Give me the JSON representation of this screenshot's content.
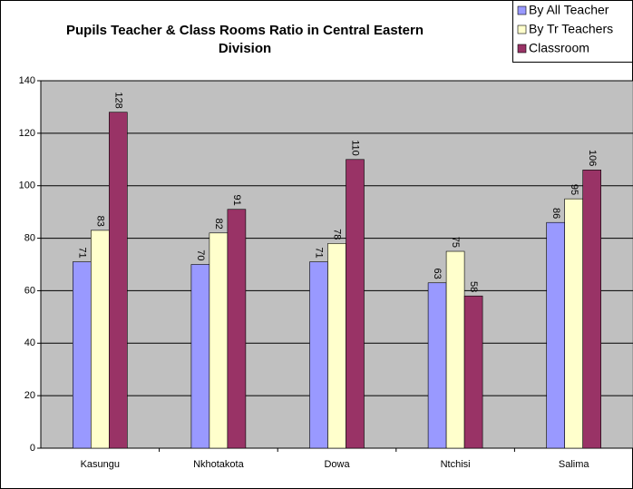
{
  "chart_data": {
    "type": "bar",
    "title": [
      "Pupils Teacher & Class Rooms Ratio in  Central Eastern",
      "Division"
    ],
    "categories": [
      "Kasungu",
      "Nkhotakota",
      "Dowa",
      "Ntchisi",
      "Salima"
    ],
    "series": [
      {
        "name": "By All Teacher",
        "color": "#9999ff",
        "values": [
          71,
          70,
          71,
          63,
          86
        ]
      },
      {
        "name": "By Tr Teachers",
        "color": "#ffffcc",
        "values": [
          83,
          82,
          78,
          75,
          95
        ]
      },
      {
        "name": "Classroom",
        "color": "#993366",
        "values": [
          128,
          91,
          110,
          58,
          106
        ]
      }
    ],
    "ylim": [
      0,
      140
    ],
    "yticks": [
      0,
      20,
      40,
      60,
      80,
      100,
      120,
      140
    ],
    "grid": true,
    "legend": "top-right"
  }
}
